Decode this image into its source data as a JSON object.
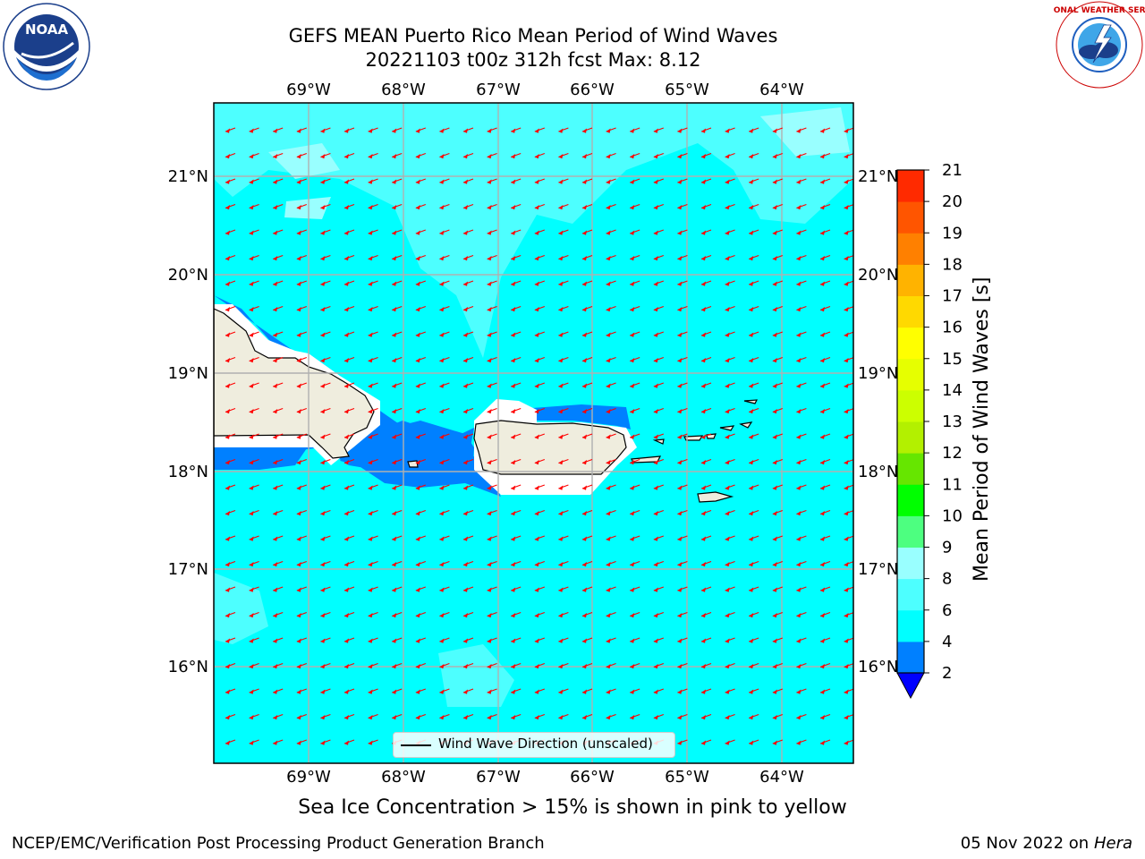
{
  "header": {
    "title_line1": "GEFS MEAN Puerto Rico Mean Period of Wind Waves",
    "title_line2": "20221103 t00z 312h fcst   Max: 8.12",
    "noaa_logo_text": "NOAA",
    "noaa_ring_text": "NATIONAL OCEANIC AND ATMOSPHERIC ADMINISTRATION · U.S. DEPARTMENT OF COMMERCE",
    "nws_ring_text": "NATIONAL WEATHER SERVICE"
  },
  "map": {
    "lon_labels": [
      "69°W",
      "68°W",
      "67°W",
      "66°W",
      "65°W",
      "64°W"
    ],
    "lat_labels": [
      "21°N",
      "20°N",
      "19°N",
      "18°N",
      "17°N",
      "16°N"
    ],
    "legend_label": "Wind Wave Direction (unscaled)",
    "colors": {
      "ocean_base": "#00ffff",
      "ocean_light": "#4dffff",
      "ocean_dark": "#0080ff",
      "land": "#efedde",
      "arrow": "#ff0000"
    }
  },
  "colorbar": {
    "title": "Mean Period of Wind Waves [s]",
    "tick_labels": [
      "2",
      "4",
      "6",
      "8",
      "9",
      "10",
      "11",
      "12",
      "13",
      "14",
      "15",
      "16",
      "17",
      "18",
      "19",
      "20",
      "21"
    ],
    "colors": [
      "#0080ff",
      "#00ffff",
      "#4dffff",
      "#99ffff",
      "#4dff80",
      "#00ff00",
      "#66e600",
      "#b3f000",
      "#ccff00",
      "#e6ff00",
      "#ffff00",
      "#ffd900",
      "#ffb300",
      "#ff8000",
      "#ff5500",
      "#ff2a00",
      "#ff0000"
    ],
    "extend_color": "#0000ff"
  },
  "footer": {
    "note": "Sea Ice Concentration > 15% is shown in pink to yellow",
    "left": "NCEP/EMC/Verification Post Processing Product Generation Branch",
    "right_date": "05 Nov 2022 on",
    "right_host": "Hera"
  }
}
